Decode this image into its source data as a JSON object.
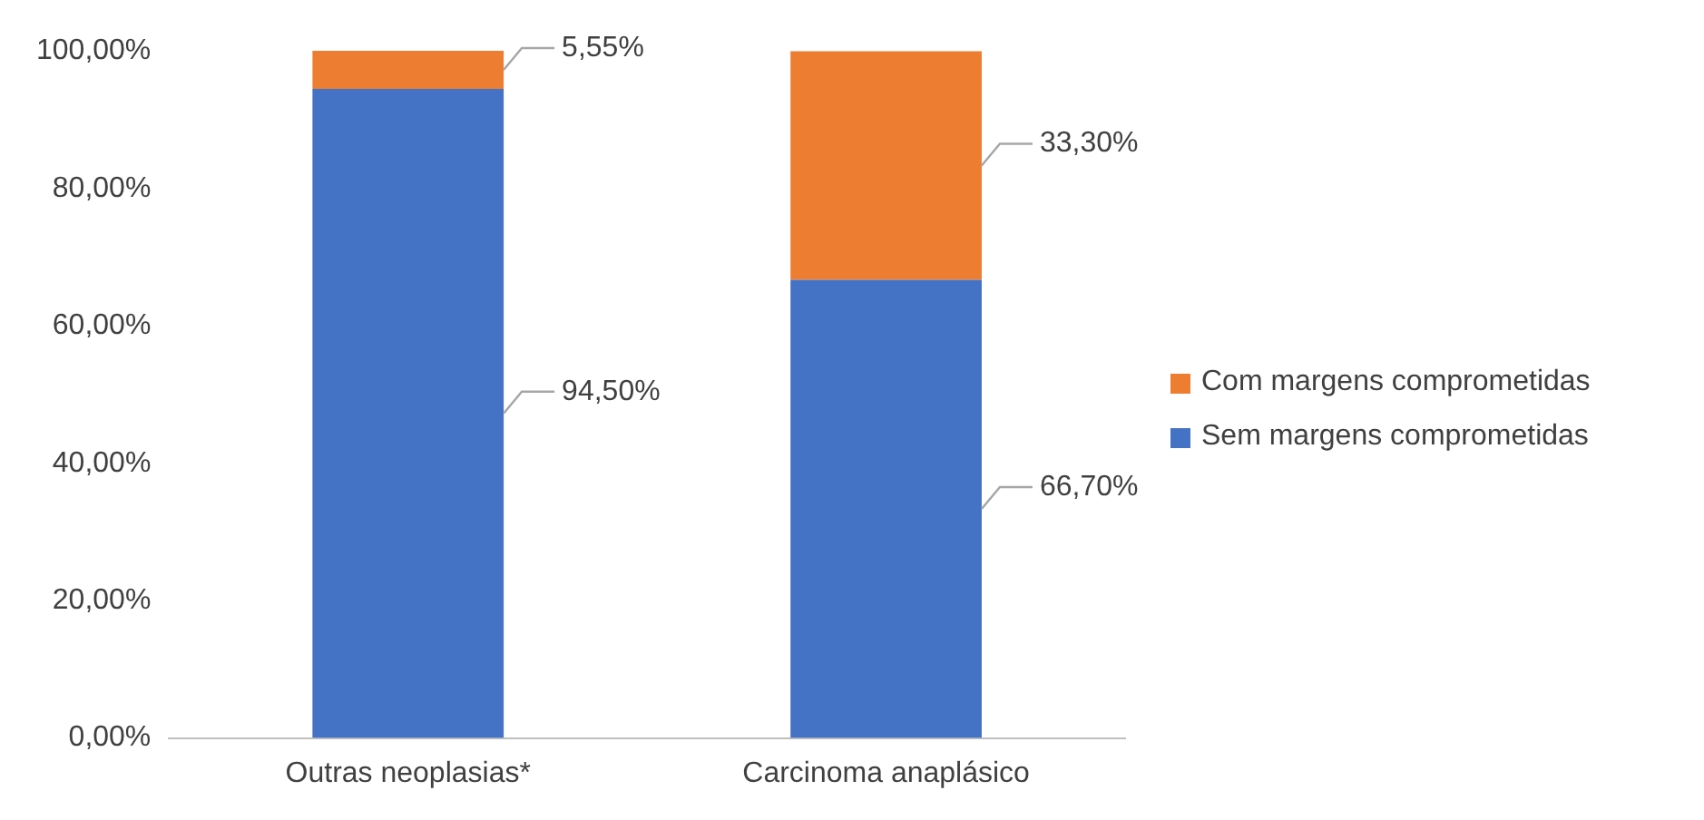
{
  "chart_data": {
    "type": "bar",
    "stacked": true,
    "categories": [
      "Outras neoplasias*",
      "Carcinoma anaplásico"
    ],
    "series": [
      {
        "name": "Sem margens comprometidas",
        "color": "#4472c4",
        "values": [
          94.5,
          66.7
        ],
        "value_labels": [
          "94,50%",
          "66,70%"
        ]
      },
      {
        "name": "Com margens comprometidas",
        "color": "#ed7d31",
        "values": [
          5.55,
          33.3
        ],
        "value_labels": [
          "5,55%",
          "33,30%"
        ]
      }
    ],
    "ylim": [
      0,
      100.05
    ],
    "yticks": [
      {
        "value": 0,
        "label": "0,00%"
      },
      {
        "value": 20,
        "label": "20,00%"
      },
      {
        "value": 40,
        "label": "40,00%"
      },
      {
        "value": 60,
        "label": "60,00%"
      },
      {
        "value": 80,
        "label": "80,00%"
      },
      {
        "value": 100,
        "label": "100,00%"
      }
    ],
    "grid": false,
    "legend": "right"
  }
}
